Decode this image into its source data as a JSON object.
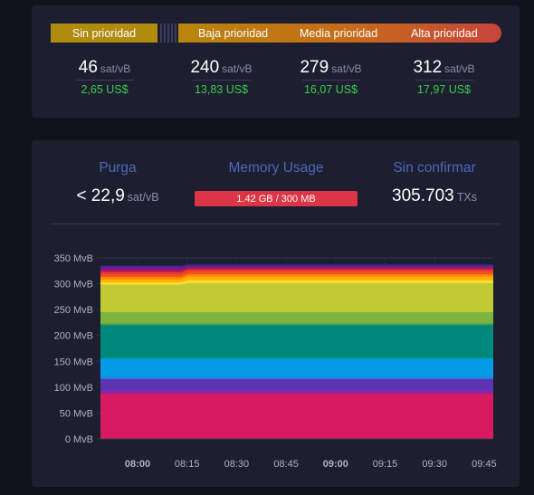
{
  "fees": {
    "segments": {
      "none": "Sin prioridad",
      "low": "Baja prioridad",
      "medium": "Media prioridad",
      "high": "Alta prioridad"
    },
    "unit": "sat/vB",
    "columns": [
      {
        "value": "46",
        "usd": "2,65 US$"
      },
      {
        "value": "240",
        "usd": "13,83 US$"
      },
      {
        "value": "279",
        "usd": "16,07 US$"
      },
      {
        "value": "312",
        "usd": "17,97 US$"
      }
    ]
  },
  "mempool": {
    "purge_title": "Purga",
    "purge_value": "< 22,9",
    "purge_unit": "sat/vB",
    "memory_title": "Memory Usage",
    "memory_value": "1.42 GB / 300 MB",
    "unconfirmed_title": "Sin confirmar",
    "unconfirmed_value": "305.703",
    "unconfirmed_unit": "TXs"
  },
  "chart_data": {
    "type": "area",
    "stacked": true,
    "ylim": [
      0,
      350
    ],
    "y_ticks": [
      "0 MvB",
      "50 MvB",
      "100 MvB",
      "150 MvB",
      "200 MvB",
      "250 MvB",
      "300 MvB",
      "350 MvB"
    ],
    "x_ticks": [
      {
        "label": "08:00",
        "bold": true
      },
      {
        "label": "08:15",
        "bold": false
      },
      {
        "label": "08:30",
        "bold": false
      },
      {
        "label": "08:45",
        "bold": false
      },
      {
        "label": "09:00",
        "bold": true
      },
      {
        "label": "09:15",
        "bold": false
      },
      {
        "label": "09:30",
        "bold": false
      },
      {
        "label": "09:45",
        "bold": false
      }
    ],
    "grid": true,
    "layers": [
      {
        "color": "#d81b60",
        "top_start": 87,
        "top_end": 87
      },
      {
        "color": "#8e24aa",
        "top_start": 94,
        "top_end": 94
      },
      {
        "color": "#5e35b1",
        "top_start": 116,
        "top_end": 116
      },
      {
        "color": "#1e88e5",
        "top_start": 121,
        "top_end": 121
      },
      {
        "color": "#039be5",
        "top_start": 156,
        "top_end": 156
      },
      {
        "color": "#00897b",
        "top_start": 220,
        "top_end": 220
      },
      {
        "color": "#43a047",
        "top_start": 223,
        "top_end": 223
      },
      {
        "color": "#7cb342",
        "top_start": 245,
        "top_end": 245
      },
      {
        "color": "#c0ca33",
        "top_start": 298,
        "top_end": 301
      },
      {
        "color": "#fdd835",
        "top_start": 303,
        "top_end": 307
      },
      {
        "color": "#ffb300",
        "top_start": 308,
        "top_end": 314
      },
      {
        "color": "#fb8c00",
        "top_start": 313,
        "top_end": 318
      },
      {
        "color": "#f4511e",
        "top_start": 318,
        "top_end": 323
      },
      {
        "color": "#e53935",
        "top_start": 323,
        "top_end": 328
      },
      {
        "color": "#ad1457",
        "top_start": 328,
        "top_end": 332
      },
      {
        "color": "#6a1b9a",
        "top_start": 333,
        "top_end": 335
      },
      {
        "color": "#283593",
        "top_start": 335,
        "top_end": 337
      }
    ]
  }
}
